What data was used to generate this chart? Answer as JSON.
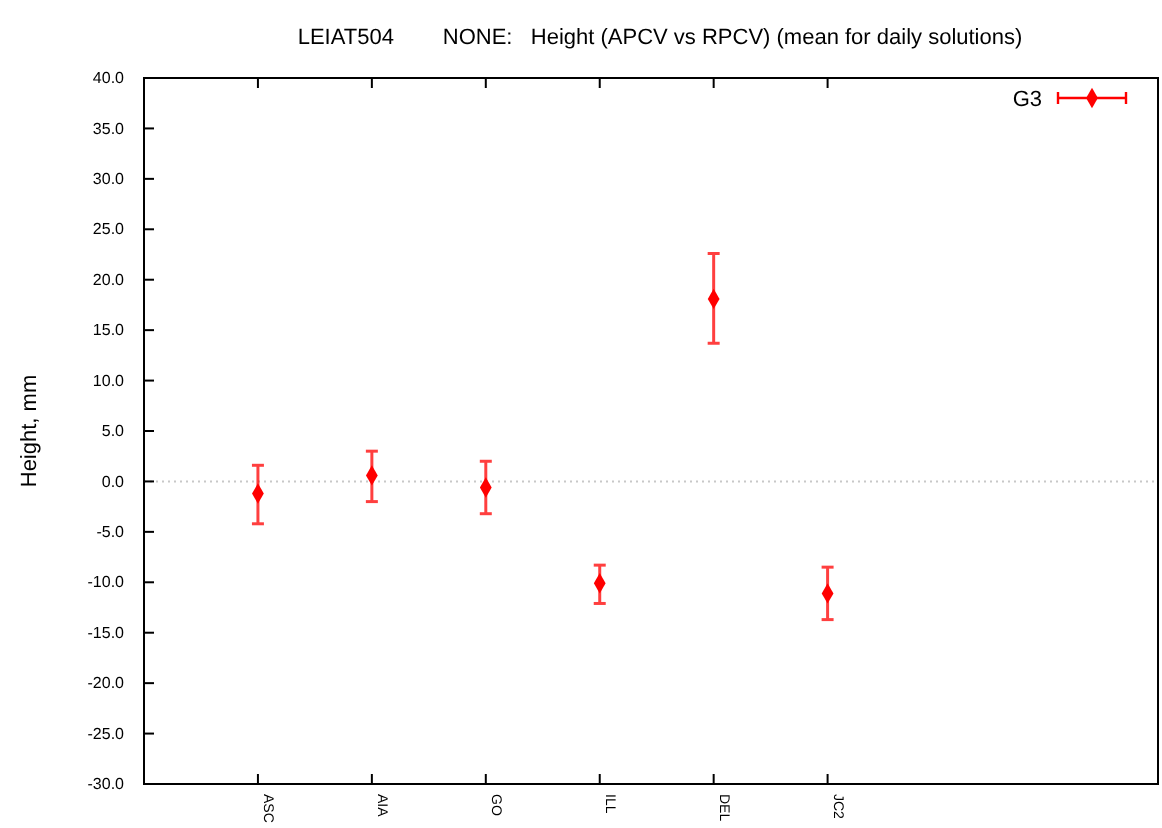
{
  "chart_data": {
    "type": "scatter",
    "title": "LEIAT504        NONE:   Height (APCV vs RPCV) (mean for daily solutions)",
    "ylabel": "Height, mm",
    "categories": [
      "ASC",
      "AIA",
      "GO",
      "ILL",
      "DEL",
      "JC2"
    ],
    "series": [
      {
        "name": "G3",
        "color": "#ff0000",
        "values": [
          -1.2,
          0.6,
          -0.6,
          -10.1,
          18.1,
          -11.1
        ],
        "errors": [
          [
            -4.2,
            1.6
          ],
          [
            -2.0,
            3.0
          ],
          [
            -3.2,
            2.0
          ],
          [
            -12.1,
            -8.3
          ],
          [
            13.7,
            22.6
          ],
          [
            -13.7,
            -8.5
          ]
        ]
      }
    ],
    "ylim": [
      -30,
      40
    ],
    "yticks": [
      {
        "value": -30,
        "label": "-30.0"
      },
      {
        "value": -25,
        "label": "-25.0"
      },
      {
        "value": -20,
        "label": "-20.0"
      },
      {
        "value": -15,
        "label": "-15.0"
      },
      {
        "value": -10,
        "label": "-10.0"
      },
      {
        "value": -5,
        "label": "-5.0"
      },
      {
        "value": 0,
        "label": "0.0"
      },
      {
        "value": 5,
        "label": "5.0"
      },
      {
        "value": 10,
        "label": "10.0"
      },
      {
        "value": 15,
        "label": "15.0"
      },
      {
        "value": 20,
        "label": "20.0"
      },
      {
        "value": 25,
        "label": "25.0"
      },
      {
        "value": 30,
        "label": "30.0"
      },
      {
        "value": 35,
        "label": "35.0"
      },
      {
        "value": 40,
        "label": "40.0"
      }
    ],
    "ref_lines": [
      {
        "axis": "y",
        "value": 0,
        "color": "#c8c8c8",
        "line_style": "dotted"
      }
    ],
    "marker": "diamond",
    "legend": "top right",
    "grid": false
  }
}
